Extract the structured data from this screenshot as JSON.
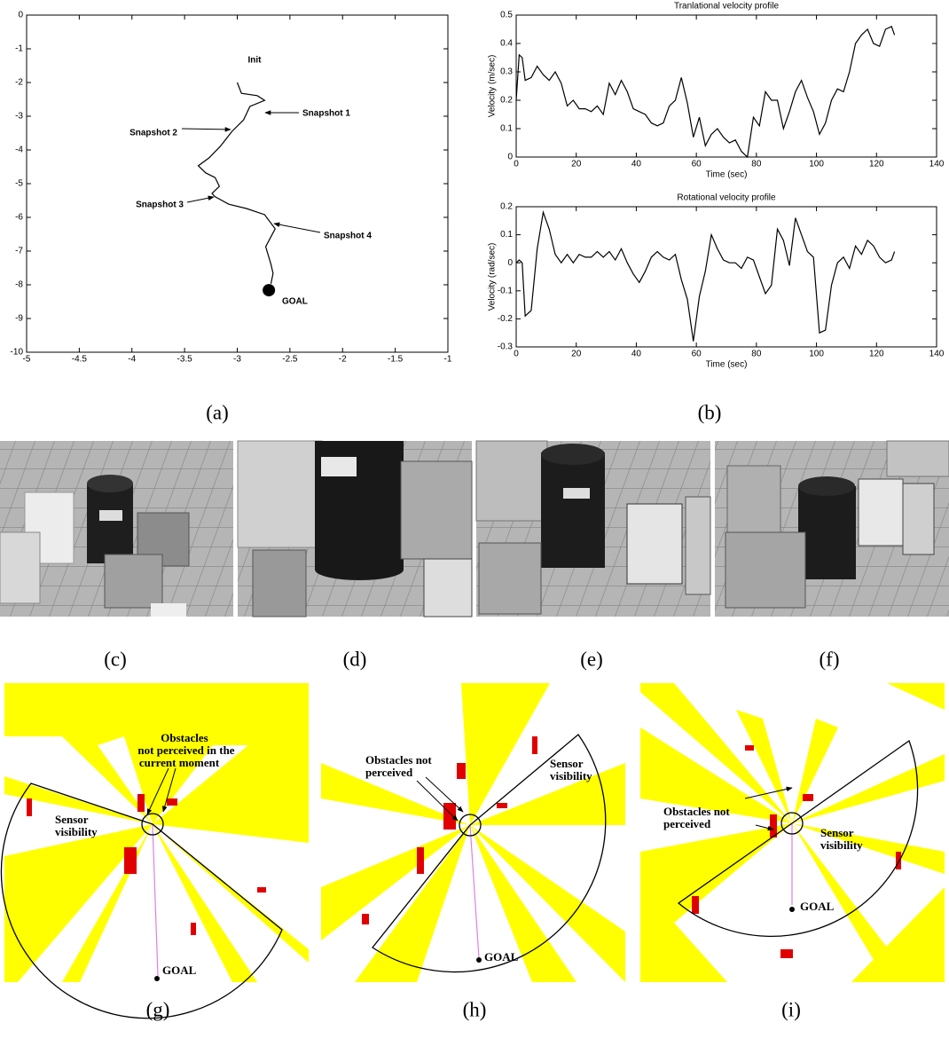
{
  "chart_data": [
    {
      "type": "line",
      "x": [
        -3.0,
        -2.96,
        -2.81,
        -2.74,
        -2.88,
        -2.94,
        -3.05,
        -3.16,
        -3.27,
        -3.37,
        -3.3,
        -3.21,
        -3.17,
        -3.24,
        -3.21,
        -3.08,
        -2.91,
        -2.74,
        -2.64,
        -2.73,
        -2.68,
        -2.66,
        -2.68
      ],
      "values": [
        -2.0,
        -2.32,
        -2.39,
        -2.53,
        -2.71,
        -3.11,
        -3.45,
        -3.89,
        -4.24,
        -4.47,
        -4.68,
        -4.82,
        -5.08,
        -5.29,
        -5.39,
        -5.61,
        -5.74,
        -5.92,
        -6.34,
        -6.87,
        -7.39,
        -7.66,
        -7.97
      ],
      "color": "#000000",
      "goal_point": {
        "x": -2.7,
        "y": -8.16
      },
      "annotations": [
        "Init",
        "Snapshot 1",
        "Snapshot 2",
        "Snapshot 3",
        "Snapshot 4",
        "GOAL"
      ],
      "xlim": [
        -5,
        -1
      ],
      "xticks": [
        -5,
        -4.5,
        -4,
        -3.5,
        -3,
        -2.5,
        -2,
        -1.5,
        -1
      ],
      "ylim": [
        -10,
        0
      ],
      "yticks": [
        0,
        -1,
        -2,
        -3,
        -4,
        -5,
        -6,
        -7,
        -8,
        -9,
        -10
      ],
      "grid": false
    },
    {
      "type": "line",
      "title": "Tranlational velocity profile",
      "x_label": "Time (sec)",
      "y_label": "Velocity (m/sec)",
      "x": [
        0,
        1,
        2,
        3,
        5,
        7,
        9,
        11,
        13,
        15,
        17,
        19,
        21,
        23,
        25,
        27,
        29,
        31,
        33,
        35,
        37,
        39,
        41,
        43,
        45,
        47,
        49,
        51,
        53,
        55,
        57,
        59,
        61,
        63,
        65,
        67,
        69,
        71,
        73,
        75,
        77,
        79,
        81,
        83,
        85,
        87,
        89,
        91,
        93,
        95,
        97,
        99,
        101,
        103,
        105,
        107,
        109,
        111,
        113,
        115,
        117,
        119,
        121,
        123,
        125,
        126
      ],
      "values": [
        0.2,
        0.36,
        0.35,
        0.27,
        0.28,
        0.32,
        0.29,
        0.27,
        0.3,
        0.26,
        0.18,
        0.2,
        0.17,
        0.17,
        0.16,
        0.18,
        0.15,
        0.26,
        0.22,
        0.27,
        0.23,
        0.17,
        0.16,
        0.15,
        0.12,
        0.11,
        0.12,
        0.18,
        0.2,
        0.28,
        0.19,
        0.07,
        0.14,
        0.04,
        0.08,
        0.1,
        0.07,
        0.05,
        0.06,
        0.02,
        0,
        0.14,
        0.11,
        0.23,
        0.2,
        0.2,
        0.1,
        0.16,
        0.23,
        0.27,
        0.21,
        0.16,
        0.08,
        0.12,
        0.2,
        0.24,
        0.23,
        0.3,
        0.4,
        0.43,
        0.45,
        0.4,
        0.39,
        0.45,
        0.46,
        0.43
      ],
      "color": "#000000",
      "xlim": [
        0,
        140
      ],
      "xticks": [
        0,
        20,
        40,
        60,
        80,
        100,
        120,
        140
      ],
      "ylim": [
        0,
        0.5
      ],
      "yticks": [
        0,
        0.1,
        0.2,
        0.3,
        0.4,
        0.5
      ],
      "grid": false
    },
    {
      "type": "line",
      "title": "Rotational velocity profile",
      "x_label": "Time (sec)",
      "y_label": "Velocity (rad/sec)",
      "x": [
        0,
        1,
        2,
        3,
        5,
        7,
        9,
        11,
        13,
        15,
        17,
        19,
        21,
        23,
        25,
        27,
        29,
        31,
        33,
        35,
        37,
        39,
        41,
        43,
        45,
        47,
        49,
        51,
        53,
        55,
        57,
        59,
        61,
        63,
        65,
        67,
        69,
        71,
        73,
        75,
        77,
        79,
        81,
        83,
        85,
        87,
        89,
        91,
        93,
        95,
        97,
        99,
        101,
        103,
        105,
        107,
        109,
        111,
        113,
        115,
        117,
        119,
        121,
        123,
        125,
        126
      ],
      "values": [
        0,
        0.01,
        0,
        -0.19,
        -0.17,
        0.05,
        0.18,
        0.12,
        0.03,
        0,
        0.03,
        0,
        0.03,
        0.02,
        0.02,
        0.04,
        0.02,
        0.04,
        0.01,
        0.05,
        0,
        -0.04,
        -0.07,
        -0.03,
        0.02,
        0.04,
        0.02,
        0.01,
        0.03,
        -0.06,
        -0.13,
        -0.28,
        -0.12,
        -0.03,
        0.1,
        0.05,
        0.01,
        0,
        0,
        -0.02,
        0.02,
        0.01,
        -0.05,
        -0.11,
        -0.08,
        0.12,
        0.08,
        -0.01,
        0.16,
        0.1,
        0.04,
        0.02,
        -0.25,
        -0.24,
        -0.08,
        0,
        0.02,
        -0.02,
        0.06,
        0.03,
        0.08,
        0.06,
        0.02,
        0,
        0.01,
        0.04
      ],
      "color": "#000000",
      "xlim": [
        0,
        140
      ],
      "xticks": [
        0,
        20,
        40,
        60,
        80,
        100,
        120,
        140
      ],
      "ylim": [
        -0.3,
        0.2
      ],
      "yticks": [
        -0.3,
        -0.2,
        -0.1,
        0,
        0.1,
        0.2
      ],
      "grid": false
    }
  ],
  "panel_labels": [
    "(a)",
    "(b)",
    "(c)",
    "(d)",
    "(e)",
    "(f)",
    "(g)",
    "(h)",
    "(i)"
  ],
  "maps": [
    {
      "annotations": [
        "Obstacles",
        "not perceived in the",
        "current moment",
        "Sensor",
        "visibility",
        "GOAL"
      ]
    },
    {
      "annotations": [
        "Obstacles not",
        "perceived",
        "Sensor",
        "visibility",
        "GOAL"
      ]
    },
    {
      "annotations": [
        "Obstacles not",
        "perceived",
        "Sensor",
        "visibility",
        "GOAL"
      ]
    }
  ]
}
